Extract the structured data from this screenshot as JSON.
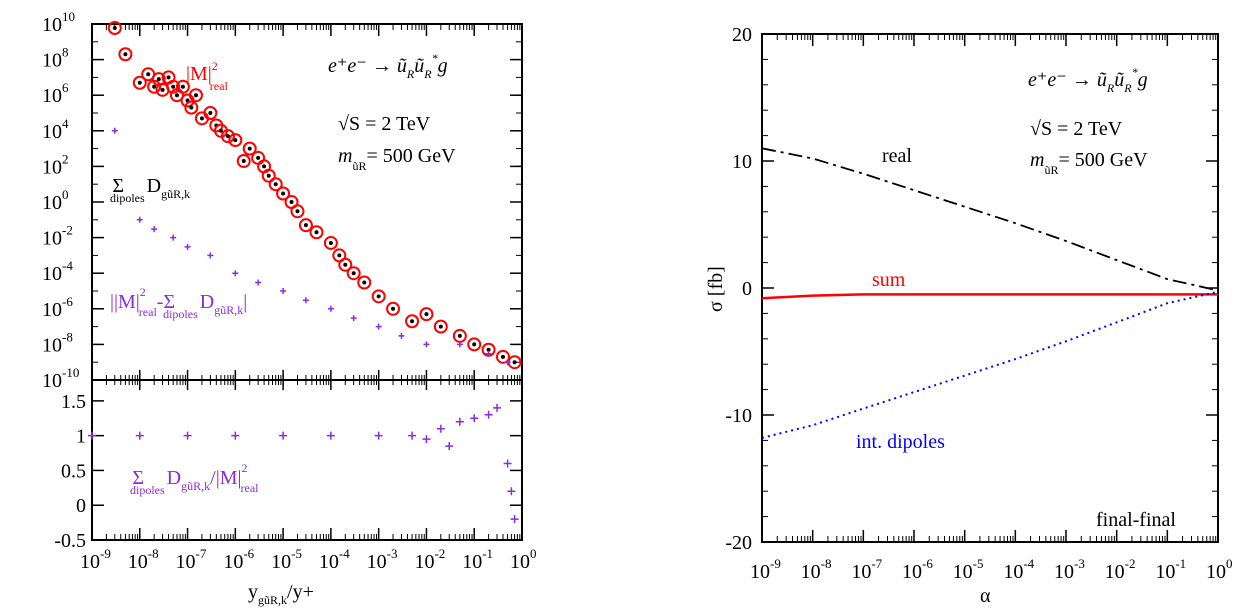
{
  "colors": {
    "red": "#ff0000",
    "purple": "#8b2be2",
    "blue": "#0000ff",
    "black": "#000000"
  },
  "left": {
    "process": {
      "lhs": "e⁺e⁻ → ũ",
      "sub1": "R",
      "mid": "ũ",
      "sub2": "R",
      "sup2": "*",
      "tail": "g"
    },
    "sqrt_s": "√S = 2 TeV",
    "mass": {
      "m": "m",
      "sub": "ũR",
      "val": "= 500 GeV"
    },
    "label_mreal": {
      "main": "|M|",
      "sup": "2",
      "sub": "real"
    },
    "label_sumD": {
      "sigma": "Σ",
      "sub": "dipoles",
      "D": "D",
      "dsub": "gũR,k"
    },
    "label_diff": {
      "text1": "||M|",
      "sup": "2",
      "sub1": "real",
      "text2": "-Σ",
      "sub2": "dipoles",
      "D": "D",
      "dsub": "gũR,k",
      "end": "|"
    },
    "label_ratio": {
      "sigma": "Σ",
      "sub": "dipoles",
      "D": "D",
      "dsub": "gũR,k",
      "mid": "/|M|",
      "sup": "2",
      "sub2": "real"
    },
    "xlabel": {
      "y": "y",
      "sub": "gũR,k",
      "tail": "/y+"
    }
  },
  "right": {
    "process": {
      "lhs": "e⁺e⁻ → ũ",
      "sub1": "R",
      "mid": "ũ",
      "sub2": "R",
      "sup2": "*",
      "tail": "g"
    },
    "sqrt_s": "√S = 2 TeV",
    "mass": {
      "m": "m",
      "sub": "ũR",
      "val": "= 500 GeV"
    },
    "ylabel": "σ [fb]",
    "xlabel": "α",
    "corner": "final-final",
    "series_labels": {
      "real": "real",
      "sum": "sum",
      "dipoles": "int. dipoles"
    }
  },
  "chart_data": [
    {
      "type": "scatter",
      "panel": "upper-left",
      "xlabel": "y_{gũR,k}/y+",
      "log_x": true,
      "log_y": true,
      "xlim": [
        1e-09,
        1
      ],
      "ylim": [
        1e-10,
        10000000000.0
      ],
      "x_ticks": [
        "10^-9",
        "10^-8",
        "10^-7",
        "10^-6",
        "10^-5",
        "10^-4",
        "10^-3",
        "10^-2",
        "10^-1",
        "10^0"
      ],
      "y_ticks": [
        "10^-10",
        "10^-8",
        "10^-6",
        "10^-4",
        "10^-2",
        "10^0",
        "10^2",
        "10^4",
        "10^6",
        "10^8",
        "10^10"
      ],
      "series": [
        {
          "name": "|M|^2_real",
          "marker": "red open circle",
          "points": [
            [
              3e-09,
              10000000000.0
            ],
            [
              5e-09,
              200000000.0
            ],
            [
              1e-08,
              5000000.0
            ],
            [
              1.5e-08,
              15000000.0
            ],
            [
              2e-08,
              3000000.0
            ],
            [
              2.5e-08,
              8000000.0
            ],
            [
              3e-08,
              2000000.0
            ],
            [
              4e-08,
              10000000.0
            ],
            [
              5e-08,
              3000000.0
            ],
            [
              6e-08,
              1000000.0
            ],
            [
              8e-08,
              3000000.0
            ],
            [
              1e-07,
              500000.0
            ],
            [
              1.2e-07,
              200000.0
            ],
            [
              1.5e-07,
              1000000.0
            ],
            [
              2e-07,
              50000.0
            ],
            [
              3e-07,
              100000.0
            ],
            [
              4e-07,
              20000.0
            ],
            [
              5e-07,
              10000.0
            ],
            [
              7e-07,
              5000.0
            ],
            [
              1e-06,
              3000.0
            ],
            [
              1.5e-06,
              200.0
            ],
            [
              2e-06,
              1000.0
            ],
            [
              3e-06,
              300.0
            ],
            [
              4e-06,
              100.0
            ],
            [
              5e-06,
              30
            ],
            [
              7e-06,
              10
            ],
            [
              1e-05,
              3
            ],
            [
              1.5e-05,
              1
            ],
            [
              2e-05,
              0.3
            ],
            [
              3e-05,
              0.05
            ],
            [
              5e-05,
              0.02
            ],
            [
              0.0001,
              0.005
            ],
            [
              0.00015,
              0.001
            ],
            [
              0.0002,
              0.0003
            ],
            [
              0.0003,
              0.0001
            ],
            [
              0.0005,
              3e-05
            ],
            [
              0.001,
              5e-06
            ],
            [
              0.002,
              1e-06
            ],
            [
              0.005,
              2e-07
            ],
            [
              0.01,
              5e-07
            ],
            [
              0.02,
              1e-07
            ],
            [
              0.05,
              3e-08
            ],
            [
              0.1,
              1e-08
            ],
            [
              0.2,
              5e-09
            ],
            [
              0.4,
              2e-09
            ],
            [
              0.7,
              1e-09
            ]
          ]
        },
        {
          "name": "|M|^2_real - Σ_dipoles D",
          "marker": "purple plus",
          "points": [
            [
              3e-09,
              10000.0
            ],
            [
              1e-08,
              0.1
            ],
            [
              2e-08,
              0.03
            ],
            [
              5e-08,
              0.01
            ],
            [
              1e-07,
              0.003
            ],
            [
              3e-07,
              0.001
            ],
            [
              1e-06,
              0.0001
            ],
            [
              3e-06,
              3e-05
            ],
            [
              1e-05,
              1e-05
            ],
            [
              3e-05,
              3e-06
            ],
            [
              0.0001,
              1e-06
            ],
            [
              0.0003,
              3e-07
            ],
            [
              0.001,
              1e-07
            ],
            [
              0.003,
              3e-08
            ],
            [
              0.01,
              1e-08
            ],
            [
              0.05,
              1e-08
            ],
            [
              0.2,
              3e-09
            ],
            [
              0.5,
              1e-09
            ]
          ]
        }
      ]
    },
    {
      "type": "scatter",
      "panel": "lower-left",
      "ylim": [
        -0.5,
        1.8
      ],
      "y_ticks": [
        "-0.5",
        "0",
        "0.5",
        "1",
        "1.5"
      ],
      "series": [
        {
          "name": "Σ_dipoles D / |M|^2_real",
          "marker": "purple plus",
          "points": [
            [
              1e-09,
              1
            ],
            [
              1e-08,
              1
            ],
            [
              1e-07,
              1
            ],
            [
              1e-06,
              1
            ],
            [
              1e-05,
              1
            ],
            [
              0.0001,
              1
            ],
            [
              0.001,
              1
            ],
            [
              0.005,
              1
            ],
            [
              0.01,
              0.95
            ],
            [
              0.02,
              1.1
            ],
            [
              0.03,
              0.85
            ],
            [
              0.05,
              1.2
            ],
            [
              0.1,
              1.25
            ],
            [
              0.2,
              1.3
            ],
            [
              0.3,
              1.4
            ],
            [
              0.5,
              0.6
            ],
            [
              0.6,
              0.2
            ],
            [
              0.7,
              -0.2
            ]
          ]
        }
      ]
    },
    {
      "type": "line",
      "panel": "right",
      "xlabel": "α",
      "ylabel": "σ [fb]",
      "log_x": true,
      "xlim": [
        1e-09,
        1
      ],
      "ylim": [
        -20,
        20
      ],
      "x_ticks": [
        "10^-9",
        "10^-8",
        "10^-7",
        "10^-6",
        "10^-5",
        "10^-4",
        "10^-3",
        "10^-2",
        "10^-1",
        "10^0"
      ],
      "y_ticks": [
        "-20",
        "-10",
        "0",
        "10",
        "20"
      ],
      "series": [
        {
          "name": "real",
          "style": "black dash-dot",
          "x": [
            1e-09,
            1e-08,
            1e-07,
            1e-06,
            1e-05,
            0.0001,
            0.001,
            0.01,
            0.1,
            1
          ],
          "y": [
            11.0,
            10.2,
            9.0,
            7.7,
            6.4,
            5.1,
            3.7,
            2.2,
            0.7,
            -0.2
          ]
        },
        {
          "name": "sum",
          "style": "red solid",
          "x": [
            1e-09,
            1e-08,
            1e-07,
            1e-06,
            1e-05,
            0.0001,
            0.001,
            0.01,
            0.1,
            1
          ],
          "y": [
            -0.8,
            -0.6,
            -0.5,
            -0.5,
            -0.5,
            -0.5,
            -0.5,
            -0.5,
            -0.5,
            -0.5
          ]
        },
        {
          "name": "int. dipoles",
          "style": "blue dotted",
          "x": [
            1e-09,
            1e-08,
            1e-07,
            1e-06,
            1e-05,
            0.0001,
            0.001,
            0.01,
            0.1,
            1
          ],
          "y": [
            -11.8,
            -10.8,
            -9.5,
            -8.2,
            -6.9,
            -5.6,
            -4.2,
            -2.7,
            -1.2,
            -0.3
          ]
        }
      ]
    }
  ]
}
